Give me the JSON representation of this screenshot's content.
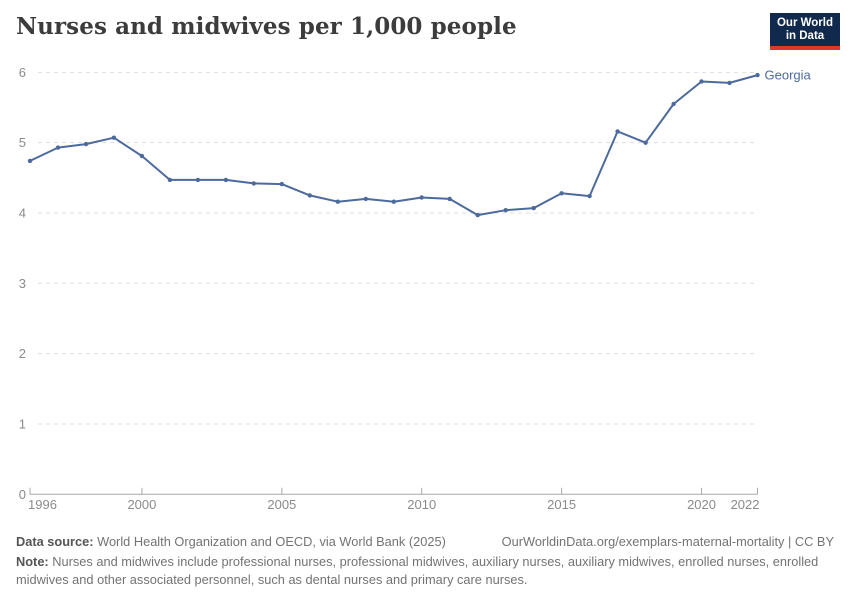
{
  "header": {
    "title": "Nurses and midwives per 1,000 people",
    "logo": {
      "line1": "Our World",
      "line2": "in Data"
    }
  },
  "chart_data": {
    "type": "line",
    "title": "Nurses and midwives per 1,000 people",
    "x": [
      1996,
      1997,
      1998,
      1999,
      2000,
      2001,
      2002,
      2003,
      2004,
      2005,
      2006,
      2007,
      2008,
      2009,
      2010,
      2011,
      2012,
      2013,
      2014,
      2015,
      2016,
      2017,
      2018,
      2019,
      2020,
      2021,
      2022
    ],
    "series": [
      {
        "name": "Georgia",
        "color": "#4c6a9c",
        "values": [
          4.74,
          4.93,
          4.98,
          5.07,
          4.81,
          4.47,
          4.47,
          4.47,
          4.42,
          4.41,
          4.25,
          4.16,
          4.2,
          4.16,
          4.22,
          4.2,
          3.97,
          4.04,
          4.07,
          4.28,
          4.24,
          5.16,
          5.0,
          5.55,
          5.87,
          5.85,
          5.96
        ]
      }
    ],
    "xlim": [
      1996,
      2022
    ],
    "ylim": [
      0,
      6
    ],
    "xticks": [
      1996,
      2000,
      2005,
      2010,
      2015,
      2020,
      2022
    ],
    "yticks": [
      0,
      1,
      2,
      3,
      4,
      5,
      6
    ],
    "grid": "horizontal-dashed",
    "legend_position": "end-of-line-label",
    "xlabel": "",
    "ylabel": ""
  },
  "footer": {
    "data_source_label": "Data source:",
    "data_source_text": "World Health Organization and OECD, via World Bank (2025)",
    "link_text": "OurWorldinData.org/exemplars-maternal-mortality | CC BY",
    "note_label": "Note:",
    "note_text": "Nurses and midwives include professional nurses, professional midwives, auxiliary nurses, auxiliary midwives, enrolled nurses, enrolled midwives and other associated personnel, such as dental nurses and primary care nurses."
  },
  "colors": {
    "line": "#4c6a9c",
    "grid": "#dddddd",
    "axis": "#a8a8a8",
    "tick_label": "#8b8b8b",
    "title": "#3c3c3c",
    "footer_text": "#737373",
    "logo_bg": "#10294c",
    "logo_bar": "#dc3832"
  }
}
